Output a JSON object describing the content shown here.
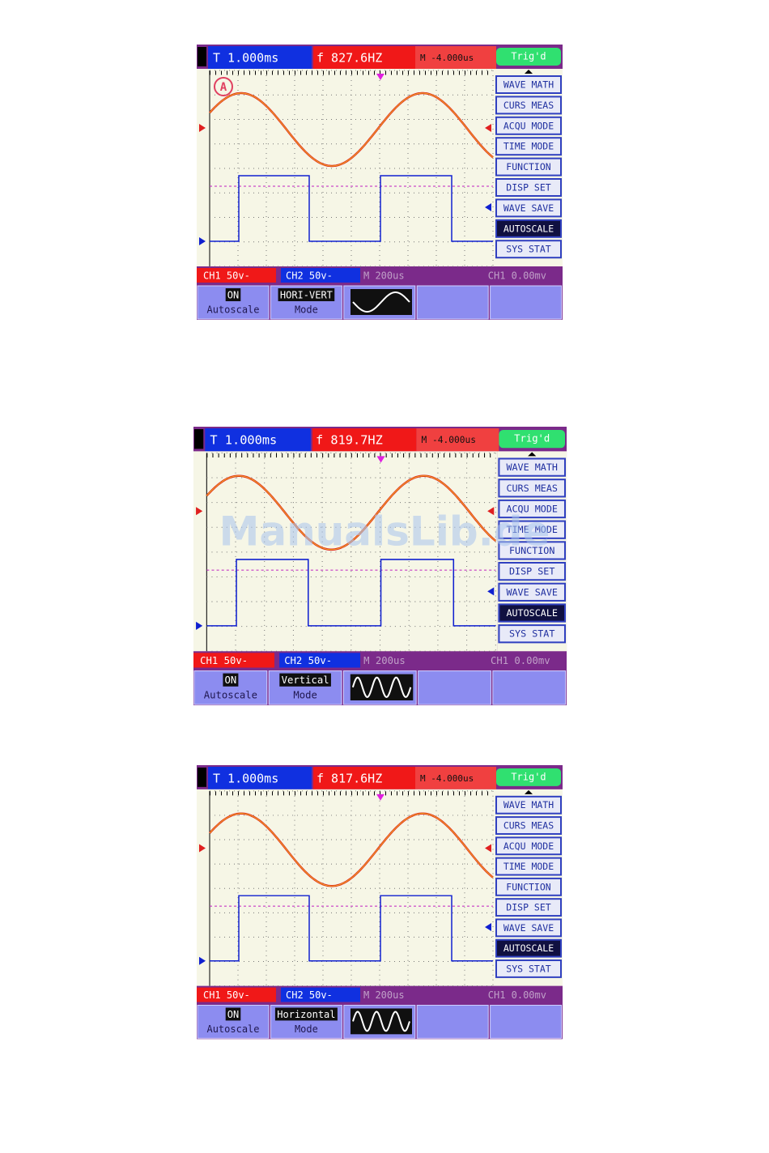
{
  "screens": [
    {
      "top": {
        "time": "T 1.000ms",
        "freq": "f 827.6HZ",
        "delay": "M -4.000us",
        "trigger": "Trig'd"
      },
      "marker": "A",
      "menu": [
        "WAVE MATH",
        "CURS MEAS",
        "ACQU MODE",
        "TIME MODE",
        "FUNCTION",
        "DISP SET",
        "WAVE SAVE",
        "AUTOSCALE",
        "SYS STAT"
      ],
      "status": {
        "ch1": "CH1 50v-",
        "ch2": "CH2 50v-",
        "timebase": "M 200us",
        "trig": "CH1 0.00mv"
      },
      "softkeys": [
        {
          "top": "ON",
          "bottom": "Autoscale"
        },
        {
          "top": "HORI-VERT",
          "bottom": "Mode"
        }
      ]
    },
    {
      "top": {
        "time": "T 1.000ms",
        "freq": "f 819.7HZ",
        "delay": "M -4.000us",
        "trigger": "Trig'd"
      },
      "menu": [
        "WAVE MATH",
        "CURS MEAS",
        "ACQU MODE",
        "TIME MODE",
        "FUNCTION",
        "DISP SET",
        "WAVE SAVE",
        "AUTOSCALE",
        "SYS STAT"
      ],
      "status": {
        "ch1": "CH1 50v-",
        "ch2": "CH2 50v-",
        "timebase": "M 200us",
        "trig": "CH1 0.00mv"
      },
      "softkeys": [
        {
          "top": "ON",
          "bottom": "Autoscale"
        },
        {
          "top": "Vertical",
          "bottom": "Mode"
        }
      ]
    },
    {
      "top": {
        "time": "T 1.000ms",
        "freq": "f 817.6HZ",
        "delay": "M -4.000us",
        "trigger": "Trig'd"
      },
      "menu": [
        "WAVE MATH",
        "CURS MEAS",
        "ACQU MODE",
        "TIME MODE",
        "FUNCTION",
        "DISP SET",
        "WAVE SAVE",
        "AUTOSCALE",
        "SYS STAT"
      ],
      "status": {
        "ch1": "CH1 50v-",
        "ch2": "CH2 50v-",
        "timebase": "M 200us",
        "trig": "CH1 0.00mv"
      },
      "softkeys": [
        {
          "top": "ON",
          "bottom": "Autoscale"
        },
        {
          "top": "Horizontal",
          "bottom": "Mode"
        }
      ]
    }
  ],
  "watermark": "ManualsLib.de"
}
